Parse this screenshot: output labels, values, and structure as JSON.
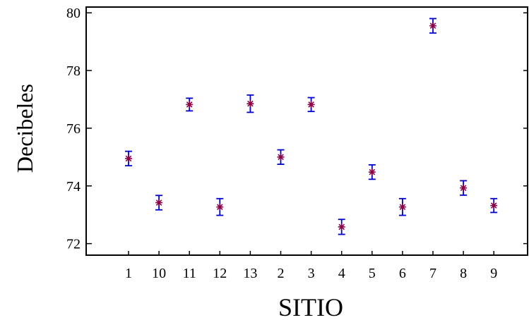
{
  "chart_data": {
    "type": "scatter",
    "title": "",
    "xlabel": "SITIO",
    "ylabel": "Decibeles",
    "categories": [
      "1",
      "10",
      "11",
      "12",
      "13",
      "2",
      "3",
      "4",
      "5",
      "6",
      "7",
      "8",
      "9"
    ],
    "series": [
      {
        "values": [
          74.95,
          73.42,
          76.82,
          73.27,
          76.85,
          75.0,
          76.82,
          72.58,
          74.48,
          73.27,
          79.55,
          73.93,
          73.32
        ],
        "error_low": [
          74.7,
          73.17,
          76.6,
          72.98,
          76.55,
          74.75,
          76.58,
          72.32,
          74.23,
          72.98,
          79.3,
          73.68,
          73.08
        ],
        "error_high": [
          75.2,
          73.67,
          77.04,
          73.56,
          77.15,
          75.25,
          77.06,
          72.84,
          74.73,
          73.56,
          79.8,
          74.18,
          73.56
        ]
      }
    ],
    "ylim": [
      71.6,
      80.2
    ],
    "yticks": [
      72,
      74,
      76,
      78,
      80
    ],
    "grid": false,
    "colors": {
      "marker": "#8b0045",
      "errorbar": "#0000cc",
      "axis": "#000000"
    }
  }
}
